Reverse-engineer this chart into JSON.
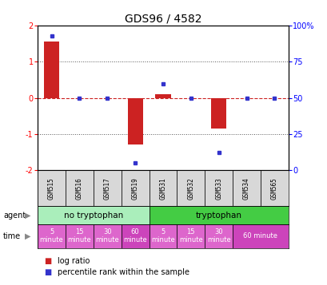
{
  "title": "GDS96 / 4582",
  "samples": [
    "GSM515",
    "GSM516",
    "GSM517",
    "GSM519",
    "GSM531",
    "GSM532",
    "GSM533",
    "GSM534",
    "GSM565"
  ],
  "log_ratio": [
    1.55,
    0.0,
    0.0,
    -1.3,
    0.1,
    0.0,
    -0.85,
    0.0,
    0.0
  ],
  "percentile": [
    93,
    50,
    50,
    5,
    60,
    50,
    12,
    50,
    50
  ],
  "ylim": [
    -2,
    2
  ],
  "y2lim": [
    0,
    100
  ],
  "yticks": [
    -2,
    -1,
    0,
    1,
    2
  ],
  "y2ticks": [
    0,
    25,
    50,
    75,
    100
  ],
  "bar_color": "#CC2222",
  "dot_color": "#3333CC",
  "zero_line_color": "#CC2222",
  "dotted_line_color": "#555555",
  "sample_bg": "#D8D8D8",
  "agent_no_tryp_color": "#AAEEBB",
  "agent_tryp_color": "#44CC44",
  "time_white": "#FFFFFF",
  "time_pink": "#DD66CC",
  "time_magenta": "#CC44BB",
  "title_fontsize": 10,
  "tick_fontsize": 7,
  "legend_fontsize": 7,
  "sample_fontsize": 5.5,
  "agent_fontsize": 7.5,
  "time_fontsize": 6
}
